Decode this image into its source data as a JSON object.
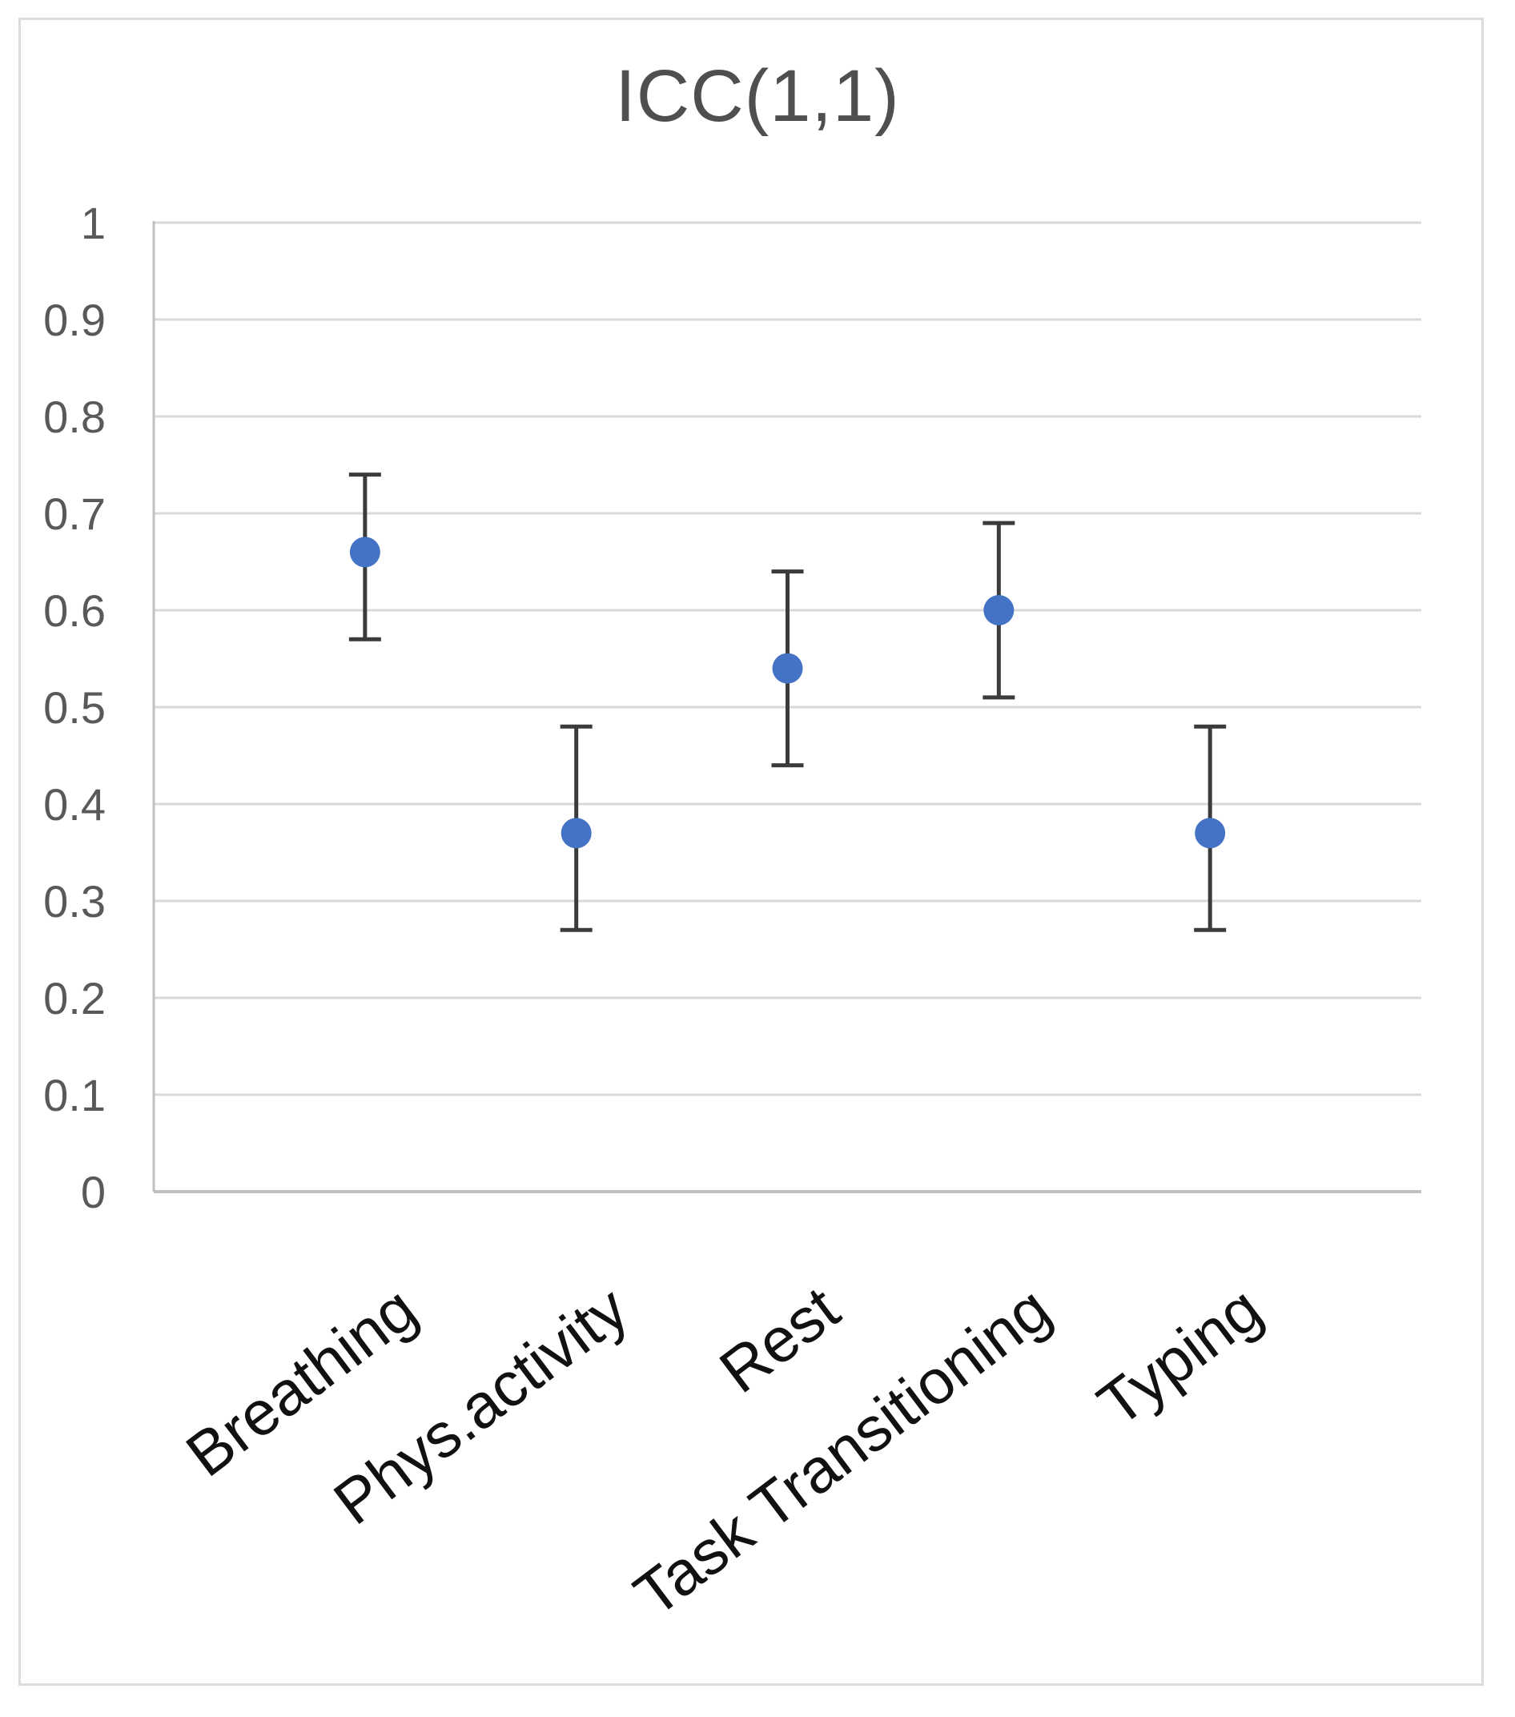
{
  "figure": {
    "background_color": "#ffffff",
    "border_color": "#dcdcdc"
  },
  "chart_data": {
    "type": "scatter",
    "title": "ICC(1,1)",
    "categories": [
      "Breathing",
      "Phys.activity",
      "Rest",
      "Task Transitioning",
      "Typing"
    ],
    "series": [
      {
        "name": "ICC(1,1)",
        "values": [
          0.66,
          0.37,
          0.54,
          0.6,
          0.37
        ],
        "error_low": [
          0.57,
          0.27,
          0.44,
          0.51,
          0.27
        ],
        "error_high": [
          0.74,
          0.48,
          0.64,
          0.69,
          0.48
        ]
      }
    ],
    "xlabel": "",
    "ylabel": "",
    "ylim": [
      0,
      1
    ],
    "y_ticks": [
      0,
      0.1,
      0.2,
      0.3,
      0.4,
      0.5,
      0.6,
      0.7,
      0.8,
      0.9,
      1
    ],
    "y_tick_labels": [
      "0",
      "0.1",
      "0.2",
      "0.3",
      "0.4",
      "0.5",
      "0.6",
      "0.7",
      "0.8",
      "0.9",
      "1"
    ],
    "grid": true,
    "legend_position": "none",
    "marker_color": "#4472C4",
    "error_bar_color": "#3b3b3b",
    "gridline_color": "#d9d9d9",
    "axis_line_color": "#bfbfbf",
    "title_color": "#4f4f4f",
    "tick_label_color": "#595959",
    "category_label_color": "#111111",
    "category_label_angle_deg": -37
  }
}
